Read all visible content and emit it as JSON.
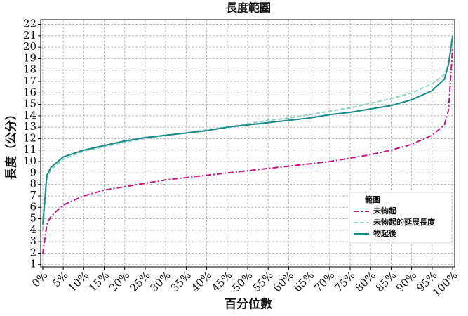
{
  "chart_data": {
    "type": "line",
    "title": "長度範圍",
    "x_label": "百分位數",
    "y_label": "長度（公分）",
    "x": [
      0,
      1,
      2,
      5,
      10,
      15,
      20,
      25,
      30,
      35,
      40,
      45,
      50,
      55,
      60,
      65,
      70,
      75,
      80,
      85,
      90,
      95,
      98,
      99,
      100
    ],
    "series": [
      {
        "name": "未物起",
        "color": "#c2187a",
        "dash": "8,3,2,3",
        "values": [
          1.9,
          4.5,
          5.2,
          6.2,
          7.0,
          7.5,
          7.8,
          8.1,
          8.4,
          8.6,
          8.8,
          9.0,
          9.2,
          9.4,
          9.6,
          9.8,
          10.0,
          10.3,
          10.6,
          11.0,
          11.5,
          12.3,
          13.2,
          14.5,
          20
        ]
      },
      {
        "name": "未物起的延展長度",
        "color": "#8fd3c5",
        "dash": "6,3",
        "values": [
          4,
          8.5,
          9.3,
          10.2,
          10.9,
          11.3,
          11.7,
          12.0,
          12.3,
          12.5,
          12.8,
          13.0,
          13.3,
          13.6,
          13.8,
          14.1,
          14.4,
          14.7,
          15.1,
          15.5,
          16.0,
          16.8,
          17.6,
          18.5,
          20.5
        ]
      },
      {
        "name": "物起後",
        "color": "#1a8a8a",
        "dash": "none",
        "values": [
          4.5,
          8.8,
          9.5,
          10.4,
          11.0,
          11.4,
          11.8,
          12.1,
          12.3,
          12.5,
          12.7,
          13.0,
          13.2,
          13.4,
          13.6,
          13.8,
          14.1,
          14.3,
          14.6,
          14.9,
          15.4,
          16.2,
          17.2,
          18.5,
          21
        ]
      }
    ],
    "legend_title": "範圍",
    "legend": "lower right",
    "grid": true,
    "xlim": [
      -0.5,
      100.5
    ],
    "ylim": [
      0.8,
      22.4
    ],
    "xticks": [
      {
        "value": 0,
        "label": "0%"
      },
      {
        "value": 5,
        "label": "5%"
      },
      {
        "value": 10,
        "label": "10%"
      },
      {
        "value": 15,
        "label": "15%"
      },
      {
        "value": 20,
        "label": "20%"
      },
      {
        "value": 25,
        "label": "25%"
      },
      {
        "value": 30,
        "label": "30%"
      },
      {
        "value": 35,
        "label": "35%"
      },
      {
        "value": 40,
        "label": "40%"
      },
      {
        "value": 45,
        "label": "45%"
      },
      {
        "value": 50,
        "label": "50%"
      },
      {
        "value": 55,
        "label": "55%"
      },
      {
        "value": 60,
        "label": "60%"
      },
      {
        "value": 65,
        "label": "65%"
      },
      {
        "value": 70,
        "label": "70%"
      },
      {
        "value": 75,
        "label": "75%"
      },
      {
        "value": 80,
        "label": "80%"
      },
      {
        "value": 85,
        "label": "85%"
      },
      {
        "value": 90,
        "label": "90%"
      },
      {
        "value": 95,
        "label": "95%"
      },
      {
        "value": 100,
        "label": "100%"
      }
    ],
    "yticks": [
      1,
      2,
      3,
      4,
      5,
      6,
      7,
      8,
      9,
      10,
      11,
      12,
      13,
      14,
      15,
      16,
      17,
      18,
      19,
      20,
      21,
      22
    ]
  }
}
